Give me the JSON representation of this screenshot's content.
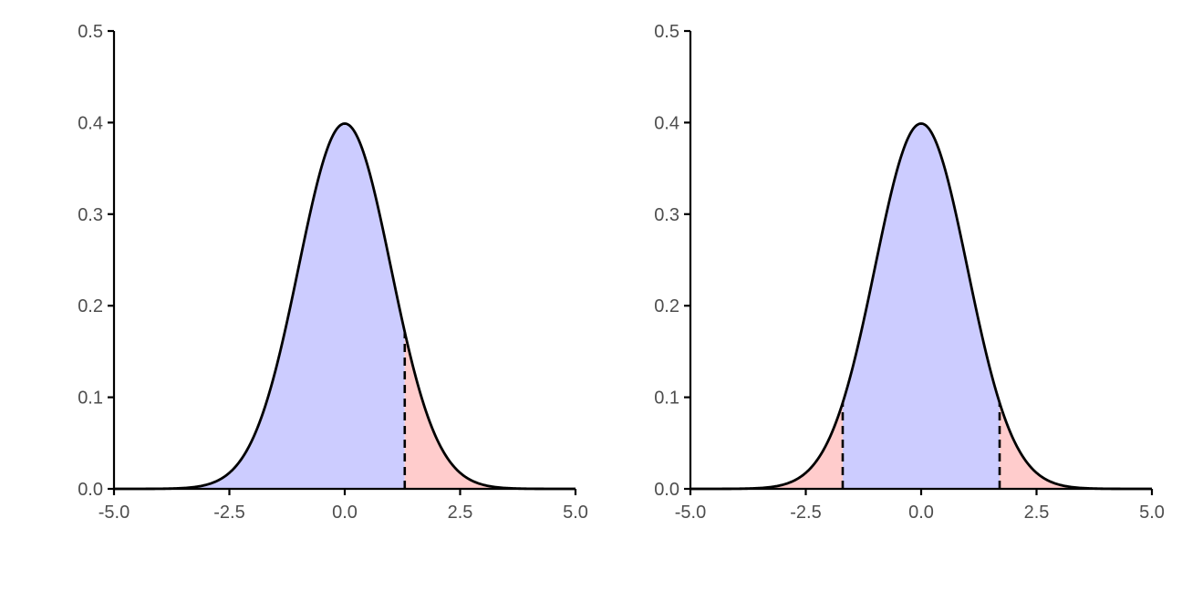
{
  "chart_data": [
    {
      "type": "area",
      "title": "",
      "xlabel": "",
      "ylabel": "",
      "distribution": "standard-normal",
      "xlim": [
        -5.0,
        5.0
      ],
      "ylim": [
        0.0,
        0.5
      ],
      "x_ticks": [
        -5.0,
        -2.5,
        0.0,
        2.5,
        5.0
      ],
      "x_tick_labels": [
        "-5.0",
        "-2.5",
        "0.0",
        "2.5",
        "5.0"
      ],
      "y_ticks": [
        0.0,
        0.1,
        0.2,
        0.3,
        0.4,
        0.5
      ],
      "y_tick_labels": [
        "0.0",
        "0.1",
        "0.2",
        "0.3",
        "0.4",
        "0.5"
      ],
      "cutoffs": [
        1.3
      ],
      "regions": [
        {
          "from": -5.0,
          "to": 1.3,
          "fill": "#ccccff"
        },
        {
          "from": 1.3,
          "to": 5.0,
          "fill": "#ffcccc"
        }
      ],
      "grid": false
    },
    {
      "type": "area",
      "title": "",
      "xlabel": "",
      "ylabel": "",
      "distribution": "standard-normal",
      "xlim": [
        -5.0,
        5.0
      ],
      "ylim": [
        0.0,
        0.5
      ],
      "x_ticks": [
        -5.0,
        -2.5,
        0.0,
        2.5,
        5.0
      ],
      "x_tick_labels": [
        "-5.0",
        "-2.5",
        "0.0",
        "2.5",
        "5.0"
      ],
      "y_ticks": [
        0.0,
        0.1,
        0.2,
        0.3,
        0.4,
        0.5
      ],
      "y_tick_labels": [
        "0.0",
        "0.1",
        "0.2",
        "0.3",
        "0.4",
        "0.5"
      ],
      "cutoffs": [
        -1.7,
        1.7
      ],
      "regions": [
        {
          "from": -5.0,
          "to": -1.7,
          "fill": "#ffcccc"
        },
        {
          "from": -1.7,
          "to": 1.7,
          "fill": "#ccccff"
        },
        {
          "from": 1.7,
          "to": 5.0,
          "fill": "#ffcccc"
        }
      ],
      "grid": false
    }
  ]
}
